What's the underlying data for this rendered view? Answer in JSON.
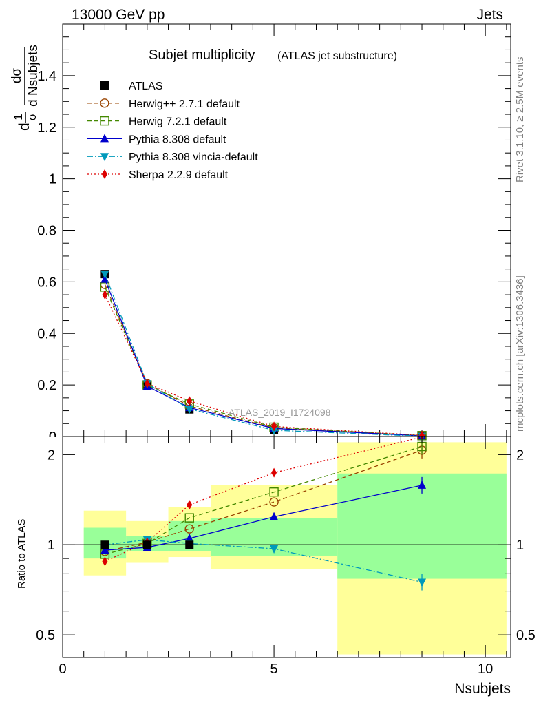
{
  "header": {
    "left": "13000 GeV pp",
    "right": "Jets"
  },
  "side_labels": {
    "rivet": "Rivet 3.1.10, ≥ 2.5M events",
    "mcplots": "mcplots.cern.ch [arXiv:1306.3436]"
  },
  "chart_data": [
    {
      "type": "line",
      "title": "Subjet multiplicity",
      "subtitle": "(ATLAS jet substructure)",
      "analysis_label": "ATLAS_2019_I1724098",
      "ylabel": {
        "prefix": "d",
        "frac1_num": "1",
        "frac1_den": "σ",
        "frac2_num": "dσ",
        "frac2_den": "d Nsubjets"
      },
      "xlim": [
        0,
        10.6
      ],
      "ylim": [
        0,
        1.6
      ],
      "yticks": [
        "0",
        "0.2",
        "0.4",
        "0.6",
        "0.8",
        "1",
        "1.2",
        "1.4"
      ],
      "legend_position": "top-left",
      "x": [
        1,
        2,
        3,
        5,
        8.5
      ],
      "series": [
        {
          "name": "ATLAS",
          "color": "#000000",
          "marker": "square-filled",
          "line": "none",
          "values": [
            0.63,
            0.2,
            0.105,
            0.025,
            0.0015
          ]
        },
        {
          "name": "Herwig++ 2.7.1 default",
          "color": "#994400",
          "marker": "circle-open",
          "line": "dashed",
          "values": [
            0.59,
            0.205,
            0.118,
            0.033,
            0.0032
          ]
        },
        {
          "name": "Herwig 7.2.1 default",
          "color": "#448800",
          "marker": "square-open",
          "line": "dashed",
          "values": [
            0.58,
            0.2,
            0.126,
            0.036,
            0.0033
          ]
        },
        {
          "name": "Pythia 8.308 default",
          "color": "#0000cc",
          "marker": "triangle-up",
          "line": "solid",
          "values": [
            0.61,
            0.195,
            0.112,
            0.031,
            0.0024
          ]
        },
        {
          "name": "Pythia 8.308 vincia-default",
          "color": "#0099bb",
          "marker": "triangle-down",
          "line": "dashdot",
          "values": [
            0.63,
            0.205,
            0.107,
            0.024,
            0.0011
          ]
        },
        {
          "name": "Sherpa 2.2.9 default",
          "color": "#dd0000",
          "marker": "diamond",
          "line": "dotted",
          "values": [
            0.55,
            0.206,
            0.138,
            0.039,
            0.0045
          ]
        }
      ]
    },
    {
      "type": "line",
      "ylabel": "Ratio to ATLAS",
      "xlabel": "Nsubjets",
      "yscale": "log",
      "ylim": [
        0.42,
        2.3
      ],
      "xlim": [
        0,
        10.6
      ],
      "xticks": [
        "0",
        "5",
        "10"
      ],
      "yticks": [
        "0.5",
        "1",
        "2"
      ],
      "x": [
        1,
        2,
        3,
        5,
        8.5
      ],
      "uncertainty_bands": {
        "bin_edges": [
          0.5,
          1.5,
          2.5,
          3.5,
          6.5,
          10.5
        ],
        "stat": {
          "color": "#99ff99",
          "low": [
            0.9,
            0.95,
            0.95,
            0.92,
            0.77
          ],
          "high": [
            1.14,
            1.07,
            1.2,
            1.23,
            1.73
          ]
        },
        "total": {
          "color": "#ffff99",
          "low": [
            0.79,
            0.87,
            0.91,
            0.83,
            0.43
          ],
          "high": [
            1.3,
            1.2,
            1.34,
            1.58,
            2.2
          ]
        }
      },
      "series": [
        {
          "name": "Herwig++ 2.7.1 default",
          "values": [
            0.95,
            1.02,
            1.13,
            1.39,
            2.07
          ]
        },
        {
          "name": "Herwig 7.2.1 default",
          "values": [
            0.93,
            1.01,
            1.23,
            1.5,
            2.13
          ]
        },
        {
          "name": "Pythia 8.308 default",
          "values": [
            0.96,
            0.98,
            1.05,
            1.24,
            1.58
          ]
        },
        {
          "name": "Pythia 8.308 vincia-default",
          "values": [
            1.0,
            1.04,
            1.01,
            0.97,
            0.75
          ]
        },
        {
          "name": "Sherpa 2.2.9 default",
          "values": [
            0.88,
            1.02,
            1.36,
            1.74,
            2.29
          ]
        }
      ]
    }
  ]
}
